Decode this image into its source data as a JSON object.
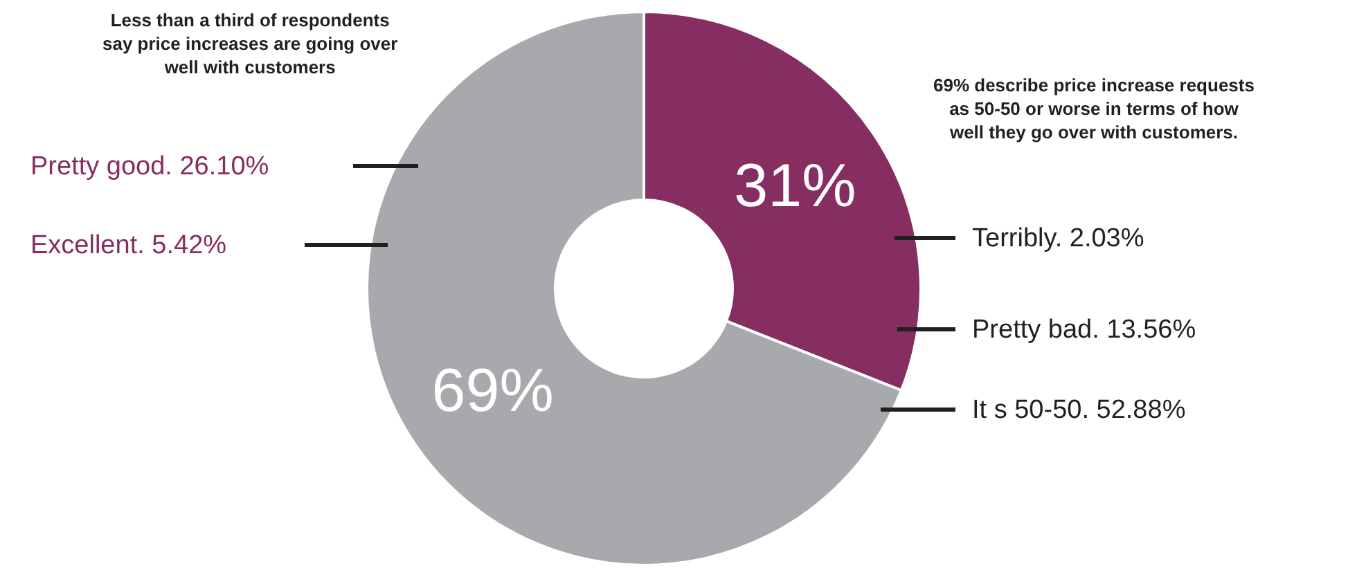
{
  "chart_data": {
    "type": "donut",
    "categories": [
      null,
      null
    ],
    "values": [
      31,
      69
    ],
    "colors": [
      "#862d62",
      "#a7a9ac"
    ],
    "value_labels": [
      "31%",
      "69%"
    ],
    "legend": false,
    "annotations": [
      "Less than a third of respondents\nsay price increases are going over\nwell with customers",
      "69% describe price increase requests\nas 50-50 or worse in terms of how\nwell they go over with customers.",
      "Pretty good. 26.10%",
      "Excellent. 5.42%",
      "Terribly. 2.03%",
      "Pretty bad. 13.56%",
      "It s 50-50. 52.88%"
    ]
  }
}
